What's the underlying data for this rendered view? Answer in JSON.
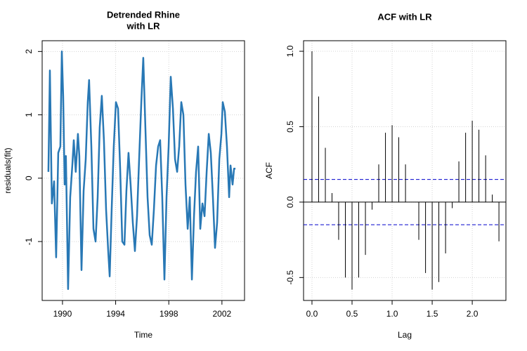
{
  "chart_data": [
    {
      "type": "line",
      "title": [
        "Detrended Rhine",
        "with LR"
      ],
      "x_label": "Time",
      "y_label": "residuals(fit)",
      "x": [
        1988.94,
        1989.05,
        1989.2,
        1989.37,
        1989.52,
        1989.68,
        1989.84,
        1989.95,
        1990.05,
        1990.16,
        1990.26,
        1990.42,
        1990.58,
        1990.74,
        1990.85,
        1991.0,
        1991.16,
        1991.27,
        1991.43,
        1991.59,
        1991.75,
        1991.9,
        1992.0,
        1992.17,
        1992.33,
        1992.49,
        1992.65,
        1992.8,
        1992.96,
        1993.12,
        1993.28,
        1993.44,
        1993.55,
        1993.7,
        1993.86,
        1994.02,
        1994.18,
        1994.34,
        1994.5,
        1994.66,
        1994.81,
        1994.97,
        1995.13,
        1995.29,
        1995.45,
        1995.61,
        1995.77,
        1995.93,
        1996.08,
        1996.24,
        1996.4,
        1996.56,
        1996.72,
        1996.88,
        1997.04,
        1997.2,
        1997.35,
        1997.51,
        1997.67,
        1997.83,
        1997.99,
        1998.15,
        1998.31,
        1998.47,
        1998.63,
        1998.78,
        1998.94,
        1999.1,
        1999.26,
        1999.42,
        1999.58,
        1999.74,
        1999.9,
        2000.05,
        2000.21,
        2000.37,
        2000.53,
        2000.69,
        2000.85,
        2001.01,
        2001.16,
        2001.32,
        2001.48,
        2001.64,
        2001.8,
        2001.96,
        2002.06,
        2002.22,
        2002.38,
        2002.54,
        2002.65,
        2002.8,
        2002.91,
        2003.02
      ],
      "series": [
        {
          "name": "residuals",
          "color": "#2878b5",
          "values": [
            0.1,
            1.7,
            -0.4,
            -0.05,
            -1.25,
            0.4,
            0.5,
            2.0,
            1.3,
            -0.1,
            0.35,
            -1.75,
            -0.3,
            0.2,
            0.6,
            0.1,
            0.7,
            0.35,
            -1.45,
            -0.2,
            0.3,
            1.2,
            1.55,
            0.5,
            -0.8,
            -1.0,
            -0.3,
            0.8,
            1.3,
            0.6,
            -0.5,
            -1.15,
            -1.55,
            -0.5,
            0.5,
            1.2,
            1.1,
            0.15,
            -1.0,
            -1.05,
            -0.2,
            0.4,
            -0.1,
            -0.7,
            -1.15,
            -0.6,
            0.3,
            1.2,
            1.9,
            0.8,
            -0.3,
            -0.9,
            -1.05,
            -0.5,
            0.2,
            0.5,
            0.6,
            -0.3,
            -1.6,
            -0.3,
            0.5,
            1.6,
            1.1,
            0.3,
            0.1,
            0.5,
            1.2,
            1.0,
            -0.1,
            -0.8,
            -0.3,
            -1.6,
            -0.6,
            0.1,
            0.5,
            -0.8,
            -0.4,
            -0.6,
            0.1,
            0.7,
            0.4,
            -0.3,
            -1.1,
            -0.7,
            0.3,
            0.7,
            1.2,
            1.05,
            0.5,
            -0.3,
            0.2,
            -0.1,
            0.15,
            0.15
          ]
        }
      ],
      "xlim": [
        1988.47,
        2003.7
      ],
      "xticks": [
        1990,
        1994,
        1998,
        2002
      ],
      "ylim": [
        -1.93,
        2.17
      ],
      "yticks": [
        2,
        1,
        0,
        -1
      ],
      "grid": true
    },
    {
      "type": "acf",
      "title": [
        "ACF with LR"
      ],
      "x_label": "Lag",
      "y_label": "ACF",
      "x": [
        0,
        0.083,
        0.167,
        0.25,
        0.333,
        0.417,
        0.5,
        0.583,
        0.667,
        0.75,
        0.833,
        0.917,
        1.0,
        1.083,
        1.167,
        1.25,
        1.333,
        1.417,
        1.5,
        1.583,
        1.667,
        1.75,
        1.833,
        1.917,
        2.0,
        2.083,
        2.167,
        2.25,
        2.333
      ],
      "series": [
        {
          "name": "ACF",
          "color": "#000000",
          "values": [
            1.0,
            0.7,
            0.36,
            0.06,
            -0.25,
            -0.5,
            -0.58,
            -0.5,
            -0.35,
            -0.05,
            0.25,
            0.46,
            0.51,
            0.43,
            0.25,
            0.0,
            -0.25,
            -0.47,
            -0.58,
            -0.53,
            -0.34,
            -0.04,
            0.27,
            0.46,
            0.54,
            0.48,
            0.31,
            0.05,
            -0.26
          ]
        }
      ],
      "hlines": [
        0.15,
        -0.15
      ],
      "hline_color": "#0000cc",
      "xlim": [
        -0.105,
        2.42
      ],
      "xticks": [
        {
          "value": 0,
          "label": "0.0"
        },
        {
          "value": 0.5,
          "label": "0.5"
        },
        {
          "value": 1,
          "label": "1.0"
        },
        {
          "value": 1.5,
          "label": "1.5"
        },
        {
          "value": 2,
          "label": "2.0"
        }
      ],
      "ylim": [
        -0.652,
        1.07
      ],
      "yticks": [
        {
          "value": 1,
          "label": "1.0"
        },
        {
          "value": 0.5,
          "label": "0.5"
        },
        {
          "value": 0,
          "label": "0.0"
        },
        {
          "value": -0.5,
          "label": "-0.5"
        }
      ],
      "grid": true
    }
  ]
}
